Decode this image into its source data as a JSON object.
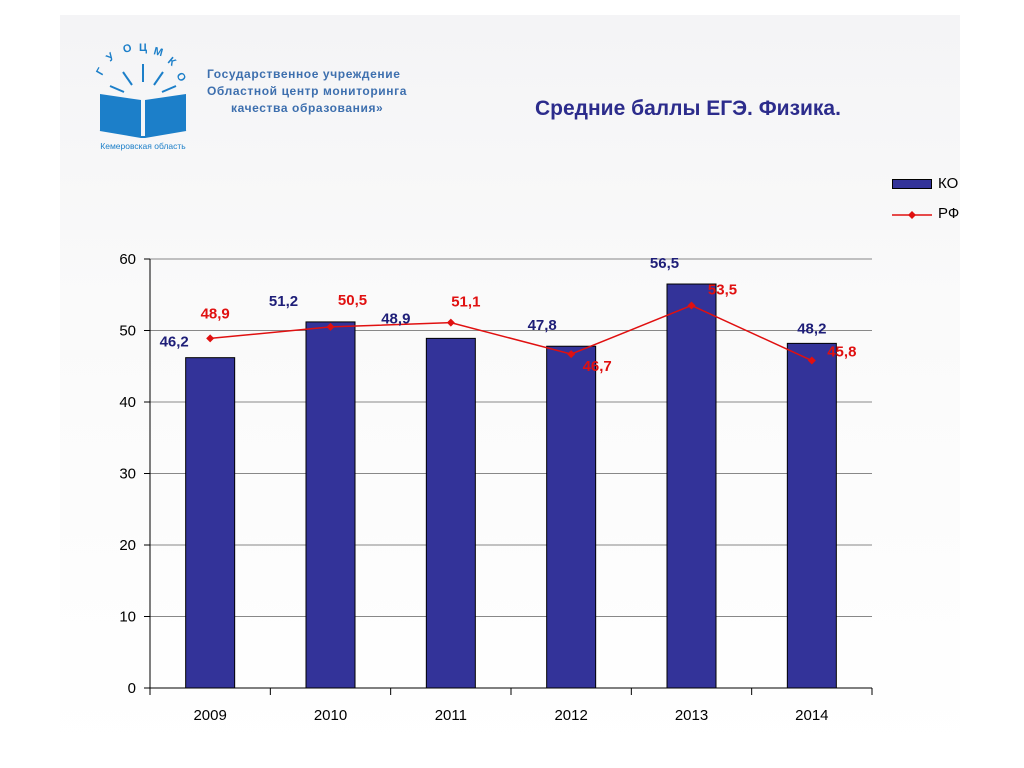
{
  "logo": {
    "arc_text": "ГУОЦМКО",
    "region": "Кемеровская область"
  },
  "org": {
    "line1": "Государственное учреждение",
    "line2": "Областной центр мониторинга",
    "line3": "качества образования»"
  },
  "colors": {
    "bar": "#333399",
    "line": "#e01010",
    "ko_label": "#1e1e78",
    "title": "#2c2c8c"
  },
  "chart_data": {
    "type": "bar",
    "title": "Средние баллы ЕГЭ. Физика.",
    "categories": [
      "2009",
      "2010",
      "2011",
      "2012",
      "2013",
      "2014"
    ],
    "series": [
      {
        "name": "КО",
        "type": "bar",
        "values": [
          46.2,
          51.2,
          48.9,
          47.8,
          56.5,
          48.2
        ],
        "labels": [
          "46,2",
          "51,2",
          "48,9",
          "47,8",
          "56,5",
          "48,2"
        ]
      },
      {
        "name": "РФ",
        "type": "line",
        "values": [
          48.9,
          50.5,
          51.1,
          46.7,
          53.5,
          45.8
        ],
        "labels": [
          "48,9",
          "50,5",
          "51,1",
          "46,7",
          "53,5",
          "45,8"
        ]
      }
    ],
    "ylim": [
      0,
      60
    ],
    "yticks": [
      0,
      10,
      20,
      30,
      40,
      50,
      60
    ],
    "grid": true,
    "legend": "top-right"
  }
}
